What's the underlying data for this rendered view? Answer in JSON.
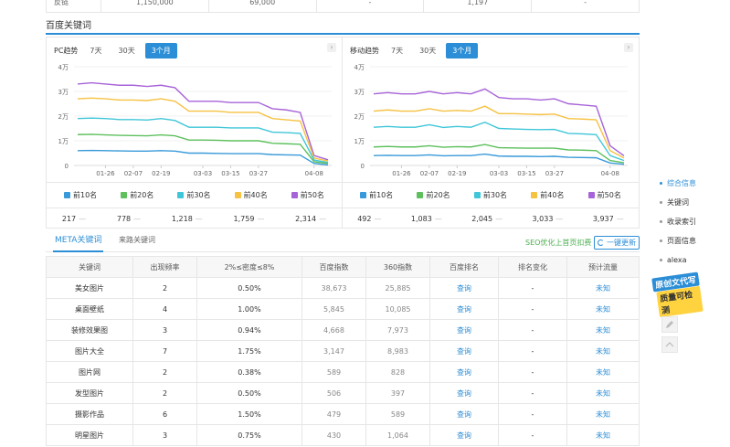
{
  "top_row": {
    "label": "反链",
    "values": [
      "1,150,000",
      "69,000",
      "-",
      "1,197",
      "-"
    ]
  },
  "section_title": "百度关键词",
  "pc": {
    "title": "PC趋势",
    "tabs": [
      "7天",
      "30天",
      "3个月"
    ],
    "yticks": [
      "4万",
      "3万",
      "2万",
      "1万",
      "0"
    ],
    "xticks": [
      "01-26",
      "02-07",
      "02-19",
      "03-03",
      "03-15",
      "03-27",
      "04-08"
    ],
    "legend": [
      "前10名",
      "前20名",
      "前30名",
      "前40名",
      "前50名"
    ],
    "values": [
      "217",
      "778",
      "1,218",
      "1,759",
      "2,314"
    ]
  },
  "mobile": {
    "title": "移动趋势",
    "tabs": [
      "7天",
      "30天",
      "3个月"
    ],
    "yticks": [
      "4万",
      "3万",
      "2万",
      "1万",
      "0"
    ],
    "xticks": [
      "01-26",
      "02-07",
      "02-19",
      "03-03",
      "03-15",
      "03-27",
      "04-08"
    ],
    "legend": [
      "前10名",
      "前20名",
      "前30名",
      "前40名",
      "前50名"
    ],
    "values": [
      "492",
      "1,083",
      "2,045",
      "3,033",
      "3,937"
    ]
  },
  "series_colors": [
    "#3a9ad9",
    "#5dc05d",
    "#3fc6d8",
    "#f5c242",
    "#a763d8"
  ],
  "chart_data": [
    {
      "type": "line",
      "title": "PC趋势",
      "ylabel": "",
      "xlabel": "",
      "ylim": [
        0,
        40000
      ],
      "x": [
        "01-14",
        "01-20",
        "01-26",
        "02-01",
        "02-07",
        "02-13",
        "02-19",
        "02-22",
        "02-25",
        "03-03",
        "03-09",
        "03-15",
        "03-21",
        "03-27",
        "03-30",
        "04-02",
        "04-05",
        "04-08",
        "04-11"
      ],
      "series": [
        {
          "name": "前50名",
          "values": [
            33000,
            33500,
            33000,
            32500,
            32500,
            32000,
            32500,
            31500,
            26000,
            26000,
            26000,
            25500,
            25500,
            25500,
            23000,
            22500,
            21500,
            4000,
            2300
          ]
        },
        {
          "name": "前40名",
          "values": [
            27000,
            27300,
            27000,
            26500,
            26500,
            26300,
            27000,
            26000,
            22000,
            22000,
            22000,
            21500,
            21500,
            21500,
            19000,
            18500,
            18000,
            3000,
            1800
          ]
        },
        {
          "name": "前30名",
          "values": [
            19000,
            19200,
            19000,
            18600,
            18600,
            18400,
            19000,
            18200,
            15500,
            15500,
            15500,
            15200,
            15200,
            15200,
            13500,
            13300,
            13000,
            2200,
            1200
          ]
        },
        {
          "name": "前20名",
          "values": [
            12500,
            12600,
            12400,
            12200,
            12100,
            12000,
            12400,
            12000,
            10300,
            10300,
            10200,
            10000,
            10000,
            10000,
            9000,
            8800,
            8600,
            1500,
            800
          ]
        },
        {
          "name": "前10名",
          "values": [
            6000,
            6100,
            6000,
            5900,
            5800,
            5800,
            6000,
            5800,
            5000,
            5000,
            4900,
            4800,
            4800,
            4800,
            4400,
            4300,
            4200,
            800,
            200
          ]
        }
      ]
    },
    {
      "type": "line",
      "title": "移动趋势",
      "ylabel": "",
      "xlabel": "",
      "ylim": [
        0,
        40000
      ],
      "x": [
        "01-14",
        "01-20",
        "01-26",
        "02-01",
        "02-07",
        "02-13",
        "02-19",
        "02-22",
        "02-25",
        "03-03",
        "03-09",
        "03-15",
        "03-21",
        "03-27",
        "03-30",
        "04-02",
        "04-05",
        "04-08",
        "04-11"
      ],
      "series": [
        {
          "name": "前50名",
          "values": [
            29000,
            29500,
            29000,
            29000,
            30000,
            29000,
            29500,
            29000,
            31000,
            27500,
            27000,
            27000,
            26500,
            27000,
            25000,
            24500,
            24000,
            8000,
            3900
          ]
        },
        {
          "name": "前40名",
          "values": [
            22000,
            22500,
            22000,
            22000,
            23000,
            22000,
            22300,
            22000,
            24000,
            21000,
            21000,
            20800,
            20600,
            20800,
            19000,
            18800,
            18500,
            6000,
            3000
          ]
        },
        {
          "name": "前30名",
          "values": [
            15500,
            15800,
            15500,
            15500,
            16500,
            15400,
            15800,
            15500,
            17500,
            15000,
            14800,
            14600,
            14500,
            14600,
            13000,
            12800,
            12500,
            4000,
            2000
          ]
        },
        {
          "name": "前20名",
          "values": [
            7500,
            7700,
            7500,
            7500,
            8000,
            7400,
            7600,
            7500,
            8500,
            7200,
            7100,
            7000,
            7000,
            7000,
            6300,
            6200,
            6000,
            2000,
            1100
          ]
        },
        {
          "name": "前10名",
          "values": [
            4000,
            4100,
            4000,
            4000,
            4300,
            3900,
            4000,
            4000,
            4600,
            3800,
            3700,
            3700,
            3600,
            3700,
            3300,
            3200,
            3100,
            1000,
            500
          ]
        }
      ]
    }
  ],
  "kw_tabs": [
    "META关键词",
    "来路关键词"
  ],
  "seo_link": "SEO优化上首页扣费",
  "refresh": "一键更新",
  "table": {
    "headers": [
      "关键词",
      "出现频率",
      "2%≤密度≤8%",
      "百度指数",
      "360指数",
      "百度排名",
      "排名变化",
      "预计流量"
    ],
    "rows": [
      [
        "美女图片",
        "2",
        "0.50%",
        "38,673",
        "25,885",
        "查询",
        "-",
        "未知"
      ],
      [
        "桌面壁纸",
        "4",
        "1.00%",
        "5,845",
        "10,085",
        "查询",
        "-",
        "未知"
      ],
      [
        "装修效果图",
        "3",
        "0.94%",
        "4,668",
        "7,973",
        "查询",
        "-",
        "未知"
      ],
      [
        "图片大全",
        "7",
        "1.75%",
        "3,147",
        "8,983",
        "查询",
        "-",
        "未知"
      ],
      [
        "图片网",
        "2",
        "0.38%",
        "589",
        "828",
        "查询",
        "-",
        "未知"
      ],
      [
        "发型图片",
        "2",
        "0.50%",
        "506",
        "397",
        "查询",
        "-",
        "未知"
      ],
      [
        "摄影作品",
        "6",
        "1.50%",
        "479",
        "589",
        "查询",
        "-",
        "未知"
      ],
      [
        "明星图片",
        "3",
        "0.75%",
        "430",
        "1,064",
        "查询",
        "-",
        "未知"
      ]
    ]
  },
  "side_nav": [
    "综合信息",
    "关键词",
    "收录索引",
    "页面信息",
    "alexa"
  ],
  "badge": {
    "line1": "原创文代写",
    "line2": "质量可检测"
  },
  "icons": {
    "edit": "pencil-icon",
    "top": "chevron-up-icon"
  }
}
